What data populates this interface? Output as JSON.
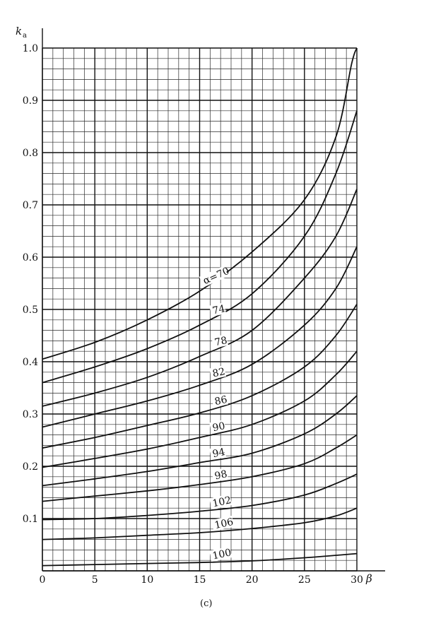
{
  "chart_data": {
    "type": "line",
    "title": "",
    "xlabel": "β",
    "ylabel": "k",
    "ylabel_sub": "a",
    "xlim": [
      0,
      30
    ],
    "ylim": [
      0,
      1.0
    ],
    "x_ticks": [
      "0",
      "5",
      "10",
      "15",
      "20",
      "25",
      "30"
    ],
    "y_ticks": [
      "0.1",
      "0.2",
      "0.3",
      "0.4",
      "0.5",
      "0.6",
      "0.7",
      "0.8",
      "0.9",
      "1.0"
    ],
    "grid": true,
    "minor_grid_step_x": 1,
    "minor_grid_step_y": 0.02,
    "caption": "(c)",
    "series": [
      {
        "name": "α=70",
        "points": [
          [
            0,
            0.405
          ],
          [
            5,
            0.437
          ],
          [
            10,
            0.48
          ],
          [
            15,
            0.535
          ],
          [
            20,
            0.61
          ],
          [
            25,
            0.71
          ],
          [
            28,
            0.83
          ],
          [
            29.5,
            0.97
          ],
          [
            30,
            1.0
          ]
        ]
      },
      {
        "name": "74",
        "points": [
          [
            0,
            0.36
          ],
          [
            5,
            0.39
          ],
          [
            10,
            0.425
          ],
          [
            15,
            0.47
          ],
          [
            20,
            0.53
          ],
          [
            25,
            0.64
          ],
          [
            28,
            0.76
          ],
          [
            30,
            0.88
          ]
        ]
      },
      {
        "name": "78",
        "points": [
          [
            0,
            0.315
          ],
          [
            5,
            0.34
          ],
          [
            10,
            0.37
          ],
          [
            15,
            0.41
          ],
          [
            20,
            0.46
          ],
          [
            25,
            0.56
          ],
          [
            28,
            0.64
          ],
          [
            30,
            0.73
          ]
        ]
      },
      {
        "name": "82",
        "points": [
          [
            0,
            0.275
          ],
          [
            5,
            0.3
          ],
          [
            10,
            0.325
          ],
          [
            15,
            0.355
          ],
          [
            20,
            0.395
          ],
          [
            25,
            0.47
          ],
          [
            28,
            0.54
          ],
          [
            30,
            0.62
          ]
        ]
      },
      {
        "name": "86",
        "points": [
          [
            0,
            0.235
          ],
          [
            5,
            0.255
          ],
          [
            10,
            0.278
          ],
          [
            15,
            0.302
          ],
          [
            20,
            0.335
          ],
          [
            25,
            0.39
          ],
          [
            28,
            0.45
          ],
          [
            30,
            0.51
          ]
        ]
      },
      {
        "name": "90",
        "points": [
          [
            0,
            0.198
          ],
          [
            5,
            0.215
          ],
          [
            10,
            0.233
          ],
          [
            15,
            0.255
          ],
          [
            20,
            0.28
          ],
          [
            25,
            0.325
          ],
          [
            28,
            0.375
          ],
          [
            30,
            0.42
          ]
        ]
      },
      {
        "name": "94",
        "points": [
          [
            0,
            0.163
          ],
          [
            5,
            0.176
          ],
          [
            10,
            0.19
          ],
          [
            15,
            0.207
          ],
          [
            20,
            0.225
          ],
          [
            25,
            0.262
          ],
          [
            28,
            0.3
          ],
          [
            30,
            0.335
          ]
        ]
      },
      {
        "name": "98",
        "points": [
          [
            0,
            0.133
          ],
          [
            5,
            0.143
          ],
          [
            10,
            0.153
          ],
          [
            15,
            0.165
          ],
          [
            20,
            0.18
          ],
          [
            25,
            0.205
          ],
          [
            28,
            0.235
          ],
          [
            30,
            0.26
          ]
        ]
      },
      {
        "name": "102",
        "points": [
          [
            0,
            0.098
          ],
          [
            5,
            0.1
          ],
          [
            10,
            0.106
          ],
          [
            15,
            0.114
          ],
          [
            20,
            0.125
          ],
          [
            25,
            0.145
          ],
          [
            28,
            0.167
          ],
          [
            30,
            0.185
          ]
        ]
      },
      {
        "name": "106",
        "points": [
          [
            0,
            0.06
          ],
          [
            5,
            0.063
          ],
          [
            10,
            0.068
          ],
          [
            15,
            0.073
          ],
          [
            20,
            0.081
          ],
          [
            25,
            0.092
          ],
          [
            28,
            0.105
          ],
          [
            30,
            0.12
          ]
        ]
      },
      {
        "name": "100",
        "points": [
          [
            0,
            0.01
          ],
          [
            5,
            0.012
          ],
          [
            10,
            0.014
          ],
          [
            15,
            0.016
          ],
          [
            20,
            0.019
          ],
          [
            25,
            0.025
          ],
          [
            30,
            0.033
          ]
        ]
      }
    ]
  }
}
